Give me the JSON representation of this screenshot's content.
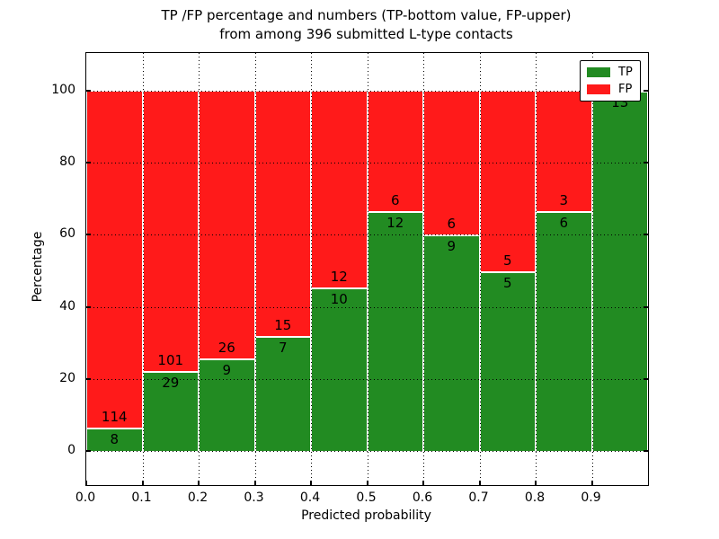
{
  "chart_data": {
    "type": "bar",
    "stacked": true,
    "normalized": "percent",
    "title": "TP /FP percentage and numbers (TP-bottom value, FP-upper)\nfrom among 396 submitted L-type contacts",
    "title_line1": "TP /FP percentage and numbers (TP-bottom value, FP-upper)",
    "title_line2": "from among 396 submitted L-type contacts",
    "xlabel": "Predicted probability",
    "ylabel": "Percentage",
    "xlim": [
      0.0,
      1.0
    ],
    "ylim": [
      -10,
      110.5
    ],
    "grid": true,
    "x_bin_edges": [
      0.0,
      0.1,
      0.2,
      0.3,
      0.4,
      0.5,
      0.6,
      0.7,
      0.8,
      0.9,
      1.0
    ],
    "x_tick_labels": [
      "0.0",
      "0.1",
      "0.2",
      "0.3",
      "0.4",
      "0.5",
      "0.6",
      "0.7",
      "0.8",
      "0.9"
    ],
    "y_ticks": [
      0,
      20,
      40,
      60,
      80,
      100
    ],
    "y_tick_labels": [
      "0",
      "20",
      "40",
      "60",
      "80",
      "100"
    ],
    "series": [
      {
        "name": "TP",
        "color": "#228b22",
        "counts": [
          8,
          29,
          9,
          7,
          10,
          12,
          9,
          5,
          6,
          13
        ]
      },
      {
        "name": "FP",
        "color": "#ff1a1a",
        "counts": [
          114,
          101,
          26,
          15,
          12,
          6,
          6,
          5,
          3,
          0
        ]
      }
    ],
    "tp_percent_of_bin": [
      6.6,
      22.3,
      25.7,
      31.8,
      45.5,
      66.7,
      60.0,
      50.0,
      66.7,
      100.0
    ],
    "legend": {
      "position": "upper right",
      "entries": [
        {
          "label": "TP",
          "color": "#228b22"
        },
        {
          "label": "FP",
          "color": "#ff1a1a"
        }
      ]
    }
  }
}
